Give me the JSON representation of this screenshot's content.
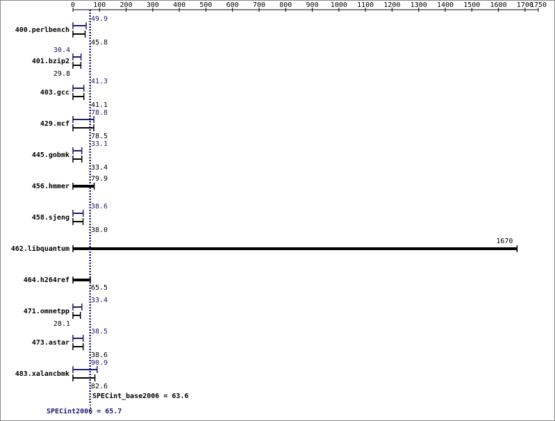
{
  "chart_data": {
    "type": "bar",
    "orientation": "horizontal",
    "categories": [
      "400.perlbench",
      "401.bzip2",
      "403.gcc",
      "429.mcf",
      "445.gobmk",
      "456.hmmer",
      "458.sjeng",
      "462.libquantum",
      "464.h264ref",
      "471.omnetpp",
      "473.astar",
      "483.xalancbmk"
    ],
    "series": [
      {
        "color": "#191970",
        "values": [
          49.9,
          30.4,
          41.3,
          78.8,
          33.1,
          null,
          38.6,
          null,
          null,
          33.4,
          38.5,
          90.9
        ]
      },
      {
        "color": "#000000",
        "values": [
          45.8,
          29.8,
          41.1,
          78.5,
          33.4,
          79.9,
          38.0,
          1670,
          65.5,
          28.1,
          38.6,
          82.6
        ],
        "value_labels": [
          "45.8",
          "29.8",
          "41.1",
          "78.5",
          "33.4",
          "79.9",
          "38.0",
          "1670",
          "65.5",
          "28.1",
          "38.6",
          "82.6"
        ]
      }
    ],
    "xlim": [
      0,
      1750
    ],
    "xticks": [
      0,
      100,
      200,
      300,
      400,
      500,
      600,
      700,
      800,
      900,
      1000,
      1100,
      1200,
      1300,
      1400,
      1500,
      1600,
      1700,
      1750
    ],
    "reference_lines": [
      {
        "label": "SPECint_base2006 = 63.6",
        "value": 63.6,
        "color": "#000000"
      },
      {
        "label": "SPECint2006 = 65.7",
        "value": 65.7,
        "color": "#191970"
      }
    ]
  }
}
